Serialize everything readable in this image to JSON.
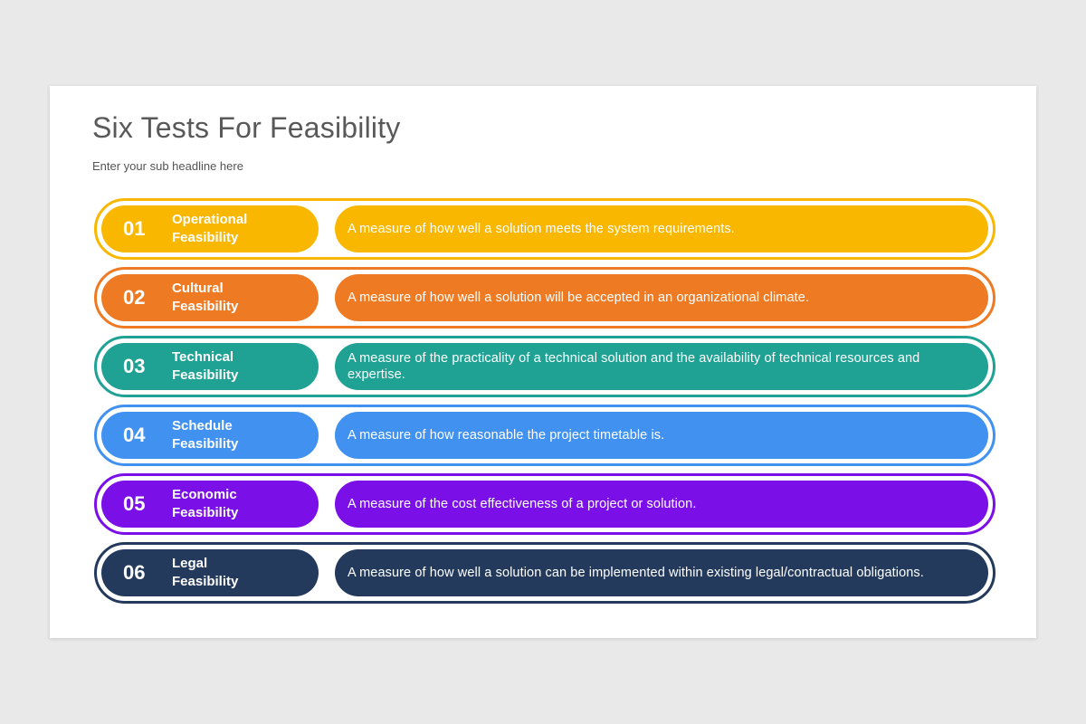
{
  "page": {
    "background_color": "#e9e9e9",
    "card_color": "#ffffff"
  },
  "header": {
    "title": "Six Tests For Feasibility",
    "subtitle": "Enter your sub headline here"
  },
  "rows": [
    {
      "number": "01",
      "label": "Operational Feasibility",
      "description": "A measure of how well a solution meets the system requirements.",
      "color": "#f9b700"
    },
    {
      "number": "02",
      "label": "Cultural Feasibility",
      "description": "A measure of how well a solution will be accepted in an organizational climate.",
      "color": "#ee7b23"
    },
    {
      "number": "03",
      "label": "Technical Feasibility",
      "description": "A measure of the practicality of a technical solution and the availability of technical resources and expertise.",
      "color": "#1fa294"
    },
    {
      "number": "04",
      "label": "Schedule Feasibility",
      "description": "A measure of how reasonable the project timetable is.",
      "color": "#4191f1"
    },
    {
      "number": "05",
      "label": "Economic Feasibility",
      "description": "A measure of the cost effectiveness of a project or solution.",
      "color": "#7a0fe8"
    },
    {
      "number": "06",
      "label": "Legal Feasibility",
      "description": "A measure of how well a solution can be implemented within existing legal/contractual obligations.",
      "color": "#233a5c"
    }
  ]
}
